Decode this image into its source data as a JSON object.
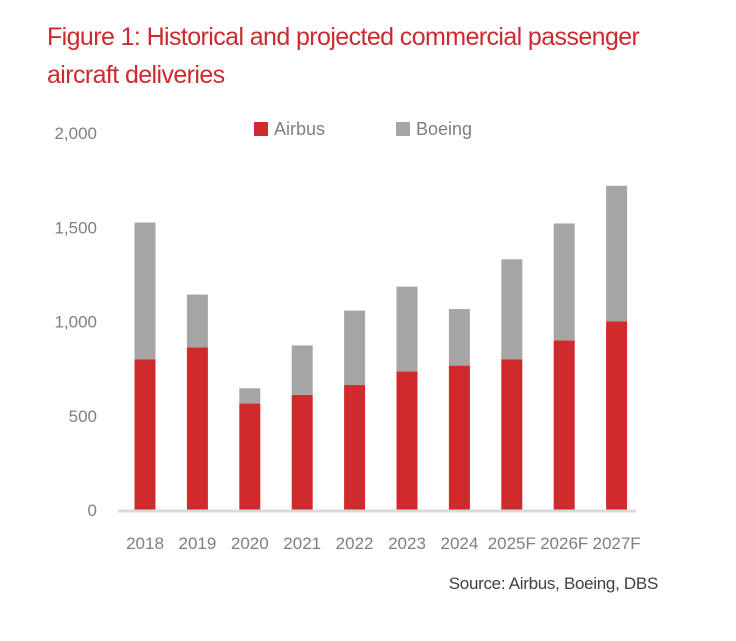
{
  "figure": {
    "title": "Figure 1:  Historical and projected commercial passenger aircraft deliveries",
    "source": "Source:  Airbus, Boeing, DBS"
  },
  "chart_data": {
    "type": "bar",
    "stacked": true,
    "title": "Figure 1:  Historical and projected commercial passenger aircraft deliveries",
    "xlabel": "",
    "ylabel": "",
    "categories": [
      "2018",
      "2019",
      "2020",
      "2021",
      "2022",
      "2023",
      "2024",
      "2025F",
      "2026F",
      "2027F"
    ],
    "series": [
      {
        "name": "Airbus",
        "color": "#cf2a2c",
        "values": [
          800,
          863,
          566,
          611,
          663,
          735,
          766,
          800,
          900,
          1000
        ]
      },
      {
        "name": "Boeing",
        "color": "#a5a5a5",
        "values": [
          725,
          280,
          80,
          262,
          395,
          450,
          300,
          530,
          620,
          720
        ]
      }
    ],
    "ylim": [
      0,
      2000
    ],
    "yticks": [
      0,
      500,
      1000,
      1500,
      2000
    ],
    "ytick_labels": [
      "0",
      "500",
      "1,000",
      "1,500",
      "2,000"
    ],
    "grid": false,
    "legend": {
      "position": "top-center",
      "entries": [
        "Airbus",
        "Boeing"
      ]
    },
    "axis_color": "#d9d9d9",
    "tick_color": "#7f7f7f"
  }
}
